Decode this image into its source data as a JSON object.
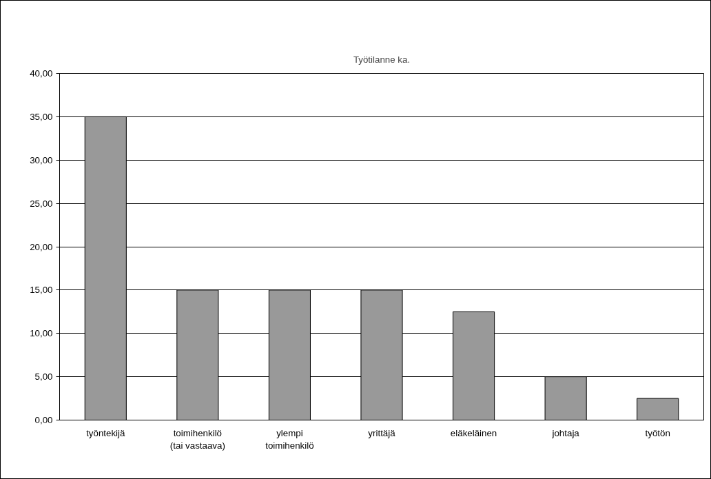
{
  "chart_data": {
    "type": "bar",
    "title": "Työtilanne ka.",
    "categories": [
      "työntekijä",
      "toimihenkilö\n(tai vastaava)",
      "ylempi\ntoimihenkilö",
      "yrittäjä",
      "eläkeläinen",
      "johtaja",
      "työtön"
    ],
    "values": [
      35,
      15,
      15,
      15,
      12.5,
      5,
      2.5
    ],
    "color": "#999999",
    "ylim": [
      0,
      40
    ],
    "yticks": [
      {
        "value": 0,
        "label": "0,00"
      },
      {
        "value": 5,
        "label": "5,00"
      },
      {
        "value": 10,
        "label": "10,00"
      },
      {
        "value": 15,
        "label": "15,00"
      },
      {
        "value": 20,
        "label": "20,00"
      },
      {
        "value": 25,
        "label": "25,00"
      },
      {
        "value": 30,
        "label": "30,00"
      },
      {
        "value": 35,
        "label": "35,00"
      },
      {
        "value": 40,
        "label": "40,00"
      }
    ],
    "grid": "y"
  }
}
